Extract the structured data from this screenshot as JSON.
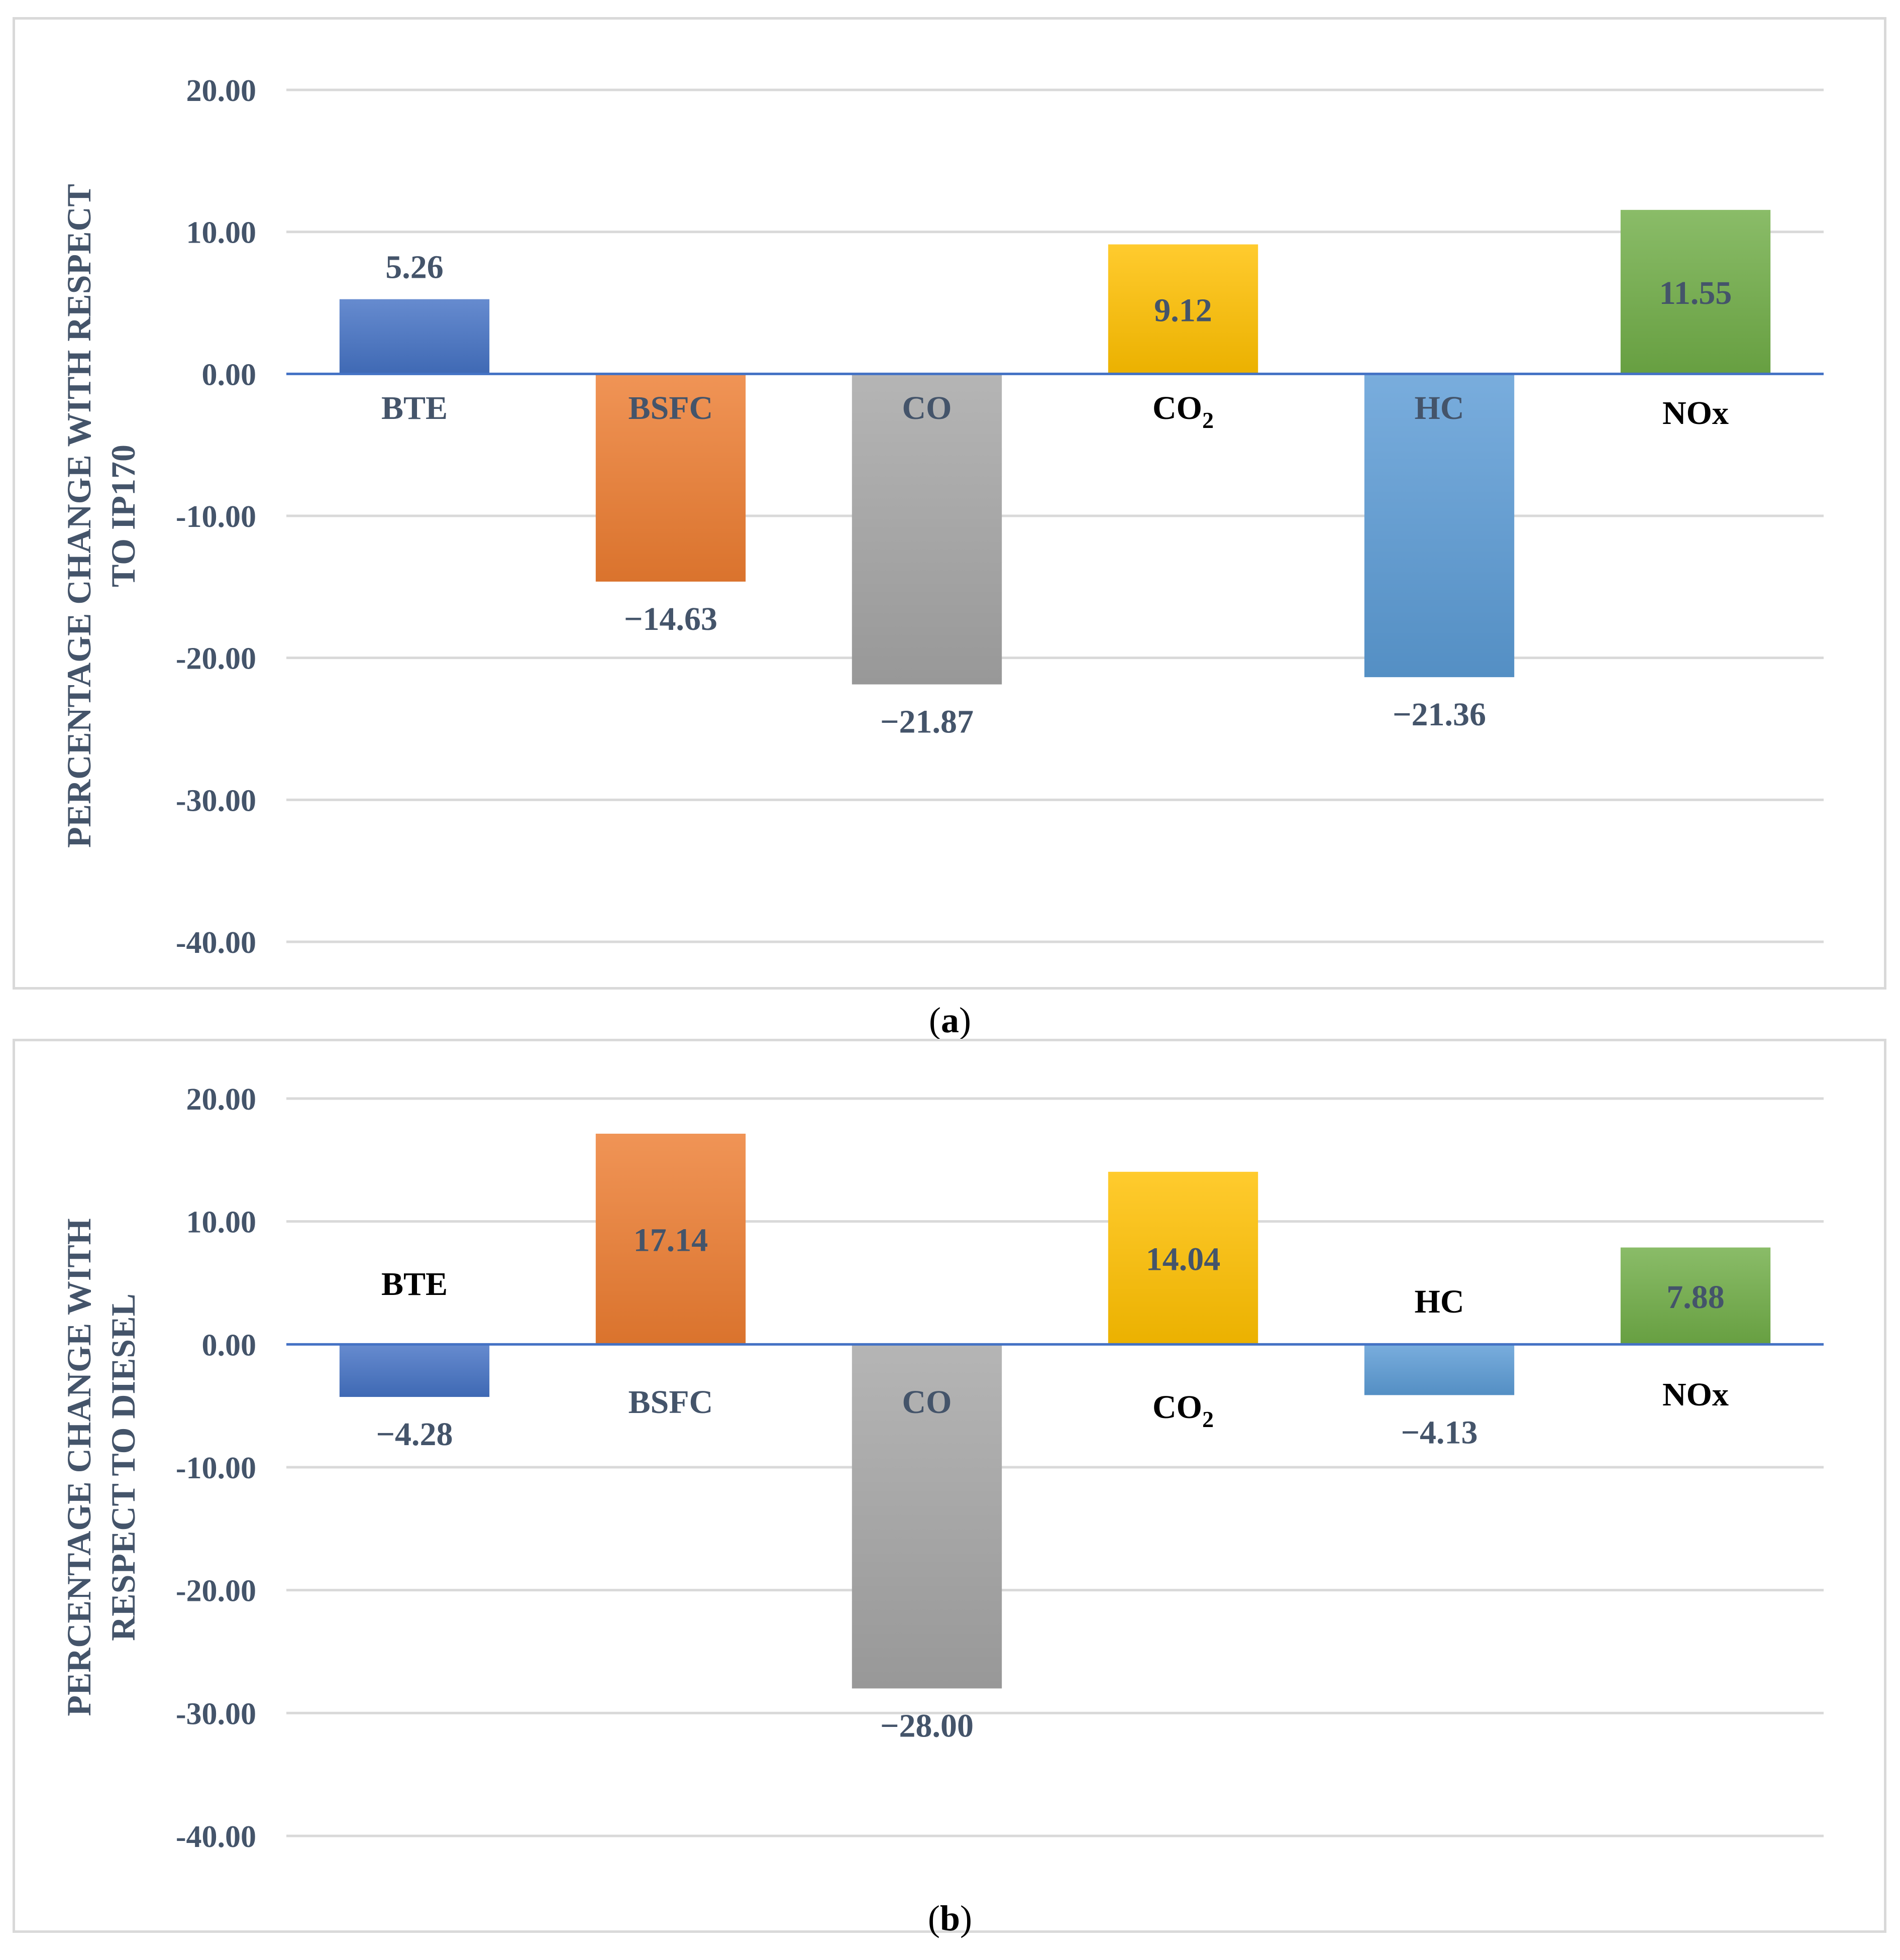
{
  "chart_data": [
    {
      "panel": "a",
      "type": "bar",
      "title": "",
      "caption_letter": "a",
      "ylabel_lines": [
        "PERCENTAGE CHANGE WITH RESPECT",
        "TO IP170"
      ],
      "ylim": [
        -40,
        20
      ],
      "yticks": [
        20,
        10,
        0,
        -10,
        -20,
        -30,
        -40
      ],
      "ytick_labels": [
        "20.00",
        "10.00",
        "0.00",
        "-10.00",
        "-20.00",
        "-30.00",
        "-40.00"
      ],
      "grid": true,
      "categories": [
        "BTE",
        "BSFC",
        "CO",
        "CO2",
        "HC",
        "NOx"
      ],
      "category_labels": [
        {
          "main": "BTE",
          "sub": ""
        },
        {
          "main": "BSFC",
          "sub": ""
        },
        {
          "main": "CO",
          "sub": ""
        },
        {
          "main": "CO",
          "sub": "2"
        },
        {
          "main": "HC",
          "sub": ""
        },
        {
          "main": "NOx",
          "sub": ""
        }
      ],
      "values": [
        5.26,
        -14.63,
        -21.87,
        9.12,
        -21.36,
        11.55
      ],
      "value_labels": [
        "5.26",
        "−14.63",
        "−21.87",
        "9.12",
        "−21.36",
        "11.55"
      ],
      "colors": [
        "#4472c4",
        "#ed7d31",
        "#a5a5a5",
        "#ffc000",
        "#5b9bd5",
        "#70ad47"
      ]
    },
    {
      "panel": "b",
      "type": "bar",
      "title": "",
      "caption_letter": "b",
      "ylabel_lines": [
        "PERCENTAGE CHANGE WITH",
        "RESPECT TO DIESEL"
      ],
      "ylim": [
        -40,
        20
      ],
      "yticks": [
        20,
        10,
        0,
        -10,
        -20,
        -30,
        -40
      ],
      "ytick_labels": [
        "20.00",
        "10.00",
        "0.00",
        "-10.00",
        "-20.00",
        "-30.00",
        "-40.00"
      ],
      "grid": true,
      "categories": [
        "BTE",
        "BSFC",
        "CO",
        "CO2",
        "HC",
        "NOx"
      ],
      "category_labels": [
        {
          "main": "BTE",
          "sub": ""
        },
        {
          "main": "BSFC",
          "sub": ""
        },
        {
          "main": "CO",
          "sub": ""
        },
        {
          "main": "CO",
          "sub": "2"
        },
        {
          "main": "HC",
          "sub": ""
        },
        {
          "main": "NOx",
          "sub": ""
        }
      ],
      "values": [
        -4.28,
        17.14,
        -28.0,
        14.04,
        -4.13,
        7.88
      ],
      "value_labels": [
        "−4.28",
        "17.14",
        "−28.00",
        "14.04",
        "−4.13",
        "7.88"
      ],
      "colors": [
        "#4472c4",
        "#ed7d31",
        "#a5a5a5",
        "#ffc000",
        "#5b9bd5",
        "#70ad47"
      ]
    }
  ]
}
